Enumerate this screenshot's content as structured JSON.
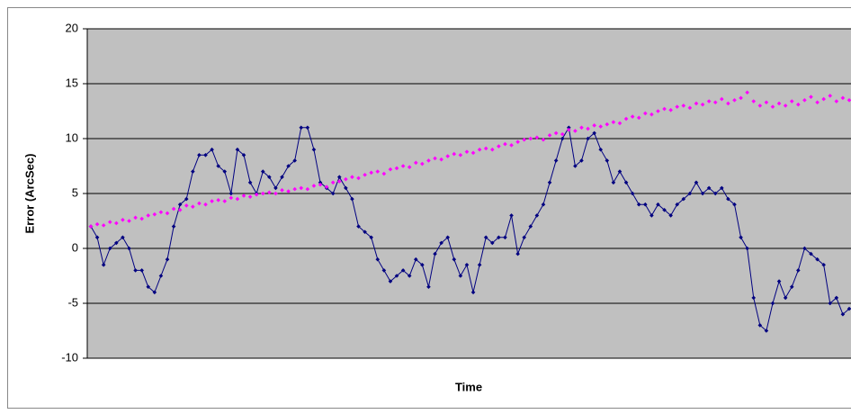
{
  "chart_data": {
    "type": "line",
    "ylabel": "Error (ArcSec)",
    "xlabel": "Time",
    "ylim": [
      -10,
      20
    ],
    "yticks": [
      -10,
      -5,
      0,
      5,
      10,
      15,
      20
    ],
    "grid": true,
    "background": "#c0c0c0",
    "series": [
      {
        "color": "#000080",
        "line": true,
        "values": [
          2,
          1,
          -1.5,
          0,
          0.5,
          1,
          0,
          -2,
          -2,
          -3.5,
          -4,
          -2.5,
          -1,
          2,
          4,
          4.5,
          7,
          8.5,
          8.5,
          9,
          7.5,
          7,
          5,
          9,
          8.5,
          6,
          5,
          7,
          6.5,
          5.5,
          6.5,
          7.5,
          8,
          11,
          11,
          9,
          6,
          5.5,
          5,
          6.5,
          5.5,
          4.5,
          2,
          1.5,
          1,
          -1,
          -2,
          -3,
          -2.5,
          -2,
          -2.5,
          -1,
          -1.5,
          -3.5,
          -0.5,
          0.5,
          1,
          -1,
          -2.5,
          -1.5,
          -4,
          -1.5,
          1,
          0.5,
          1,
          1,
          3,
          -0.5,
          1,
          2,
          3,
          4,
          6,
          8,
          10,
          11,
          7.5,
          8,
          10,
          10.5,
          9,
          8,
          6,
          7,
          6,
          5,
          4,
          4,
          3,
          4,
          3.5,
          3,
          4,
          4.5,
          5,
          6,
          5,
          5.5,
          5,
          5.5,
          4.5,
          4,
          1,
          0,
          -4.5,
          -7,
          -7.5,
          -5,
          -3,
          -4.5,
          -3.5,
          -2,
          0,
          -0.5,
          -1,
          -1.5,
          -5,
          -4.5,
          -6,
          -5.5
        ]
      },
      {
        "color": "#ff00ff",
        "line": false,
        "values": [
          2,
          2.2,
          2.1,
          2.4,
          2.3,
          2.6,
          2.5,
          2.8,
          2.7,
          3,
          3.1,
          3.3,
          3.2,
          3.6,
          3.5,
          3.9,
          3.8,
          4.1,
          4,
          4.3,
          4.4,
          4.3,
          4.6,
          4.5,
          4.8,
          4.7,
          4.9,
          5,
          5.1,
          5,
          5.3,
          5.2,
          5.4,
          5.5,
          5.4,
          5.7,
          5.8,
          5.6,
          6,
          6.1,
          6.3,
          6.5,
          6.4,
          6.7,
          6.9,
          7,
          6.8,
          7.2,
          7.3,
          7.5,
          7.4,
          7.8,
          7.7,
          8,
          8.2,
          8.1,
          8.4,
          8.6,
          8.5,
          8.8,
          8.7,
          9,
          9.1,
          9,
          9.3,
          9.5,
          9.4,
          9.7,
          9.9,
          10,
          10.1,
          9.9,
          10.3,
          10.5,
          10.4,
          10.8,
          10.7,
          11,
          10.9,
          11.2,
          11.1,
          11.3,
          11.5,
          11.4,
          11.8,
          12,
          11.9,
          12.3,
          12.2,
          12.5,
          12.7,
          12.6,
          12.9,
          13,
          12.8,
          13.2,
          13.1,
          13.4,
          13.3,
          13.6,
          13.2,
          13.5,
          13.7,
          14.2,
          13.4,
          13,
          13.3,
          12.9,
          13.2,
          13,
          13.4,
          13.1,
          13.5,
          13.8,
          13.3,
          13.6,
          13.9,
          13.4,
          13.7,
          13.5
        ]
      }
    ]
  }
}
